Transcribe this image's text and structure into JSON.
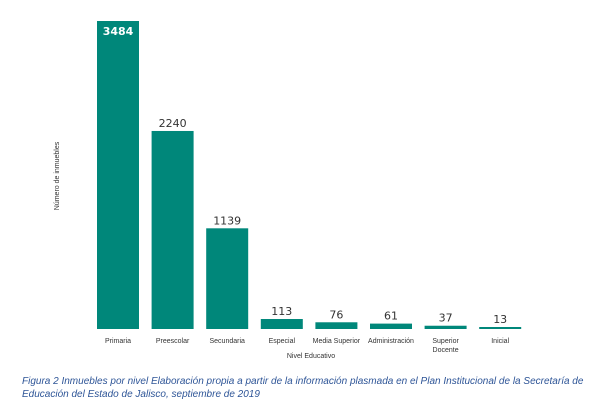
{
  "chart_data": {
    "type": "bar",
    "categories": [
      "Primaria",
      "Preescolar",
      "Secundaria",
      "Especial",
      "Media Superior",
      "Administración",
      [
        "Superior",
        "Docente"
      ],
      "Inicial"
    ],
    "values": [
      3484,
      2240,
      1139,
      113,
      76,
      61,
      37,
      13
    ],
    "xlabel": "Nivel Educativo",
    "ylabel": "Número de inmuebles",
    "ylim": [
      0,
      3484
    ],
    "grid": false,
    "legend": "none",
    "bar_color": "#00877a"
  },
  "caption": "Figura 2 Inmuebles por nivel Elaboración propia a partir de la información plasmada en el Plan Institucional de la Secretaría de Educación del Estado de Jalisco, septiembre de 2019"
}
